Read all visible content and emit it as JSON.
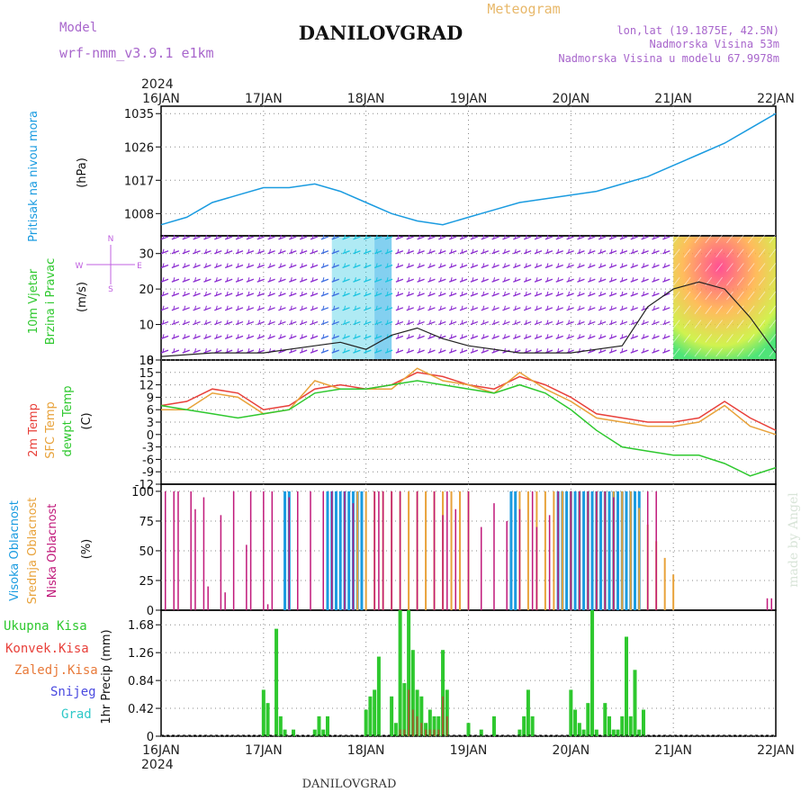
{
  "header": {
    "model_label": "Model",
    "model_name": "wrf-nmm_v3.9.1  e1km",
    "title": "DANILOVGRAD",
    "meteogram_label": "Meteogram",
    "lonlat": "lon,lat (19.1875E, 42.5N)",
    "elevation": "Nadmorska Visina 53m",
    "model_elevation": "Nadmorska Visina u modelu 67.9978m"
  },
  "footer": {
    "station": "DANILOVGRAD",
    "watermark": "made by Angel"
  },
  "time_axis": {
    "year": "2024",
    "ticks": [
      "16JAN",
      "17JAN",
      "18JAN",
      "19JAN",
      "20JAN",
      "21JAN",
      "22JAN"
    ]
  },
  "colors": {
    "pressure": "#1a9be0",
    "t2m": "#e8403a",
    "sfc": "#e8a23a",
    "dewpt": "#2ec82e",
    "high_cloud": "#1a9be0",
    "mid_cloud": "#e8a23a",
    "low_cloud": "#c0187a",
    "precip_total": "#2ec82e",
    "precip_conv": "#e8403a",
    "wind_axis": "#c060e0"
  },
  "panels": {
    "pressure": {
      "side_label": "Pritisak na nivou mora",
      "unit_label": "(hPa)",
      "ticks": [
        "1035",
        "1026",
        "1017",
        "1008"
      ]
    },
    "wind": {
      "side_label_1": "10m Vjetar",
      "side_label_2": "Brzina i Pravac",
      "unit_label": "(m/s)",
      "ticks": [
        "30",
        "20",
        "10",
        "0"
      ],
      "compass": {
        "n": "N",
        "s": "S",
        "e": "E",
        "w": "W"
      }
    },
    "temperature": {
      "labels": [
        "2m Temp",
        "SFC Temp",
        "dewpt Temp"
      ],
      "unit_label": "(C)",
      "ticks": [
        "18",
        "15",
        "12",
        "9",
        "6",
        "3",
        "0",
        "-3",
        "-6",
        "-9",
        "-12"
      ]
    },
    "clouds": {
      "labels": [
        "Visoka Oblacnost",
        "Srednja Oblacnost",
        "Niska Oblacnost"
      ],
      "unit_label": "(%)",
      "ticks": [
        "100",
        "75",
        "50",
        "25",
        "0"
      ]
    },
    "precip": {
      "labels": [
        "Ukupna Kisa",
        "Konvek.Kisa",
        "Zaledj.Kisa",
        "Snijeg",
        "Grad"
      ],
      "unit_label": "1hr Precip (mm)",
      "ticks": [
        "1.68",
        "1.26",
        "0.84",
        "0.42",
        "0"
      ]
    }
  },
  "chart_data": [
    {
      "type": "line",
      "name": "pressure",
      "ylabel": "(hPa)",
      "ylim": [
        1002,
        1037
      ],
      "grid": true,
      "x": [
        0,
        6,
        12,
        18,
        24,
        30,
        36,
        42,
        48,
        54,
        60,
        66,
        72,
        78,
        84,
        90,
        96,
        102,
        108,
        114,
        120,
        126,
        132,
        138,
        144
      ],
      "series": [
        {
          "values": [
            1005,
            1007,
            1011,
            1013,
            1015,
            1015,
            1016,
            1014,
            1011,
            1008,
            1006,
            1005,
            1007,
            1009,
            1011,
            1012,
            1013,
            1014,
            1016,
            1018,
            1021,
            1024,
            1027,
            1031,
            1035
          ]
        }
      ]
    },
    {
      "type": "line",
      "name": "wind",
      "ylabel": "(m/s)",
      "ylim": [
        0,
        35
      ],
      "grid": true,
      "x": [
        0,
        12,
        24,
        36,
        42,
        48,
        54,
        60,
        66,
        72,
        84,
        96,
        108,
        114,
        120,
        126,
        132,
        138,
        144
      ],
      "series": [
        {
          "values": [
            1,
            2,
            2,
            4,
            5,
            3,
            7,
            9,
            6,
            4,
            2,
            2,
            4,
            15,
            20,
            22,
            20,
            12,
            2
          ]
        }
      ]
    },
    {
      "type": "line",
      "name": "temperature",
      "ylabel": "(C)",
      "ylim": [
        -12,
        18
      ],
      "grid": true,
      "x": [
        0,
        6,
        12,
        18,
        24,
        30,
        36,
        42,
        48,
        54,
        60,
        66,
        72,
        78,
        84,
        90,
        96,
        102,
        108,
        114,
        120,
        126,
        132,
        138,
        144
      ],
      "series": [
        {
          "values": [
            7,
            8,
            11,
            10,
            6,
            7,
            11,
            12,
            11,
            12,
            15,
            14,
            12,
            11,
            14,
            12,
            9,
            5,
            4,
            3,
            3,
            4,
            8,
            4,
            1
          ]
        },
        {
          "values": [
            6,
            6,
            10,
            9,
            5,
            6,
            13,
            11,
            11,
            11,
            16,
            13,
            12,
            10,
            15,
            11,
            8,
            4,
            3,
            2,
            2,
            3,
            7,
            2,
            0
          ]
        },
        {
          "values": [
            7,
            6,
            5,
            4,
            5,
            6,
            10,
            11,
            11,
            12,
            13,
            12,
            11,
            10,
            12,
            10,
            6,
            1,
            -3,
            -4,
            -5,
            -5,
            -7,
            -10,
            -8
          ]
        }
      ]
    },
    {
      "type": "bar",
      "name": "clouds",
      "ylabel": "(%)",
      "ylim": [
        0,
        100
      ],
      "low_hours": [
        1,
        3,
        4,
        7,
        8,
        10,
        11,
        14,
        15,
        17,
        20,
        21,
        24,
        25,
        26,
        30,
        32,
        35,
        38,
        40,
        43,
        45,
        50,
        51,
        52,
        54,
        56,
        60,
        64,
        66,
        67,
        69,
        72,
        75,
        78,
        81,
        84,
        87,
        88,
        91,
        93,
        96,
        98,
        100,
        102,
        104,
        106,
        114,
        116,
        142,
        143
      ],
      "low_values": [
        100,
        100,
        100,
        100,
        85,
        95,
        20,
        80,
        15,
        100,
        55,
        100,
        100,
        5,
        100,
        95,
        100,
        100,
        100,
        100,
        100,
        90,
        100,
        100,
        100,
        100,
        100,
        100,
        100,
        80,
        100,
        85,
        100,
        70,
        90,
        75,
        85,
        100,
        70,
        80,
        100,
        100,
        100,
        100,
        100,
        100,
        95,
        100,
        100,
        10,
        10
      ],
      "mid_ranges": [
        [
          45,
          72
        ],
        [
          84,
          120
        ]
      ],
      "high_ranges": [
        [
          29,
          30
        ],
        [
          39,
          47
        ],
        [
          82,
          83
        ],
        [
          93,
          112
        ]
      ]
    },
    {
      "type": "bar",
      "name": "precip",
      "ylabel": "1hr Precip (mm)",
      "ylim": [
        0,
        1.9
      ],
      "x": [
        24,
        25,
        27,
        28,
        29,
        31,
        36,
        37,
        38,
        39,
        48,
        49,
        50,
        51,
        54,
        55,
        56,
        57,
        58,
        59,
        60,
        61,
        62,
        63,
        64,
        65,
        66,
        67,
        72,
        75,
        78,
        84,
        85,
        86,
        87,
        96,
        97,
        98,
        99,
        100,
        101,
        102,
        104,
        105,
        106,
        107,
        108,
        109,
        110,
        111,
        112,
        113
      ],
      "values": [
        0.7,
        0.5,
        1.62,
        0.3,
        0.1,
        0.1,
        0.1,
        0.3,
        0.1,
        0.3,
        0.4,
        0.6,
        0.7,
        1.2,
        0.6,
        0.2,
        1.9,
        0.8,
        1.9,
        1.3,
        0.7,
        0.6,
        0.2,
        0.4,
        0.3,
        0.3,
        1.3,
        0.7,
        0.2,
        0.1,
        0.3,
        0.1,
        0.3,
        0.7,
        0.3,
        0.7,
        0.4,
        0.2,
        0.1,
        0.5,
        1.9,
        0.1,
        0.5,
        0.3,
        0.1,
        0.1,
        0.3,
        1.5,
        0.3,
        1.0,
        0.1,
        0.4
      ],
      "conv_values": [
        0,
        0,
        0,
        0,
        0,
        0,
        0,
        0,
        0,
        0,
        0,
        0,
        0,
        0,
        0,
        0,
        0.1,
        0.1,
        0.7,
        0.4,
        0.3,
        0.2,
        0.1,
        0.1,
        0.1,
        0.1,
        0.6,
        0.3,
        0,
        0,
        0,
        0,
        0,
        0,
        0,
        0,
        0,
        0,
        0,
        0,
        0,
        0,
        0,
        0,
        0,
        0,
        0,
        0,
        0,
        0,
        0,
        0
      ]
    }
  ]
}
